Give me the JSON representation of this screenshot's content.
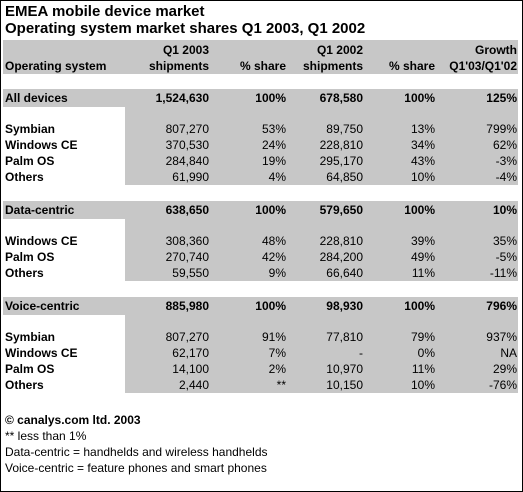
{
  "title_line1": "EMEA mobile device market",
  "title_line2": "Operating system market shares Q1 2003, Q1 2002",
  "header": {
    "col1_line1": "",
    "col1_line2": "Operating system",
    "q1_2003_line1": "Q1 2003",
    "q1_2003_line2": "shipments",
    "share_2003_line2": "% share",
    "q1_2002_line1": "Q1 2002",
    "q1_2002_line2": "shipments",
    "share_2002_line2": "% share",
    "growth_line1": "Growth",
    "growth_line2": "Q1'03/Q1'02"
  },
  "sections": [
    {
      "total": {
        "label": "All devices",
        "v1": "1,524,630",
        "p1": "100%",
        "v2": "678,580",
        "p2": "100%",
        "g": "125%"
      },
      "rows": [
        {
          "label": "Symbian",
          "v1": "807,270",
          "p1": "53%",
          "v2": "89,750",
          "p2": "13%",
          "g": "799%"
        },
        {
          "label": "Windows CE",
          "v1": "370,530",
          "p1": "24%",
          "v2": "228,810",
          "p2": "34%",
          "g": "62%"
        },
        {
          "label": "Palm OS",
          "v1": "284,840",
          "p1": "19%",
          "v2": "295,170",
          "p2": "43%",
          "g": "-3%"
        },
        {
          "label": "Others",
          "v1": "61,990",
          "p1": "4%",
          "v2": "64,850",
          "p2": "10%",
          "g": "-4%"
        }
      ]
    },
    {
      "total": {
        "label": "Data-centric",
        "v1": "638,650",
        "p1": "100%",
        "v2": "579,650",
        "p2": "100%",
        "g": "10%"
      },
      "rows": [
        {
          "label": "Windows CE",
          "v1": "308,360",
          "p1": "48%",
          "v2": "228,810",
          "p2": "39%",
          "g": "35%"
        },
        {
          "label": "Palm OS",
          "v1": "270,740",
          "p1": "42%",
          "v2": "284,200",
          "p2": "49%",
          "g": "-5%"
        },
        {
          "label": "Others",
          "v1": "59,550",
          "p1": "9%",
          "v2": "66,640",
          "p2": "11%",
          "g": "-11%"
        }
      ]
    },
    {
      "total": {
        "label": "Voice-centric",
        "v1": "885,980",
        "p1": "100%",
        "v2": "98,930",
        "p2": "100%",
        "g": "796%"
      },
      "rows": [
        {
          "label": "Symbian",
          "v1": "807,270",
          "p1": "91%",
          "v2": "77,810",
          "p2": "79%",
          "g": "937%"
        },
        {
          "label": "Windows CE",
          "v1": "62,170",
          "p1": "7%",
          "v2": "-",
          "p2": "0%",
          "g": "NA"
        },
        {
          "label": "Palm OS",
          "v1": "14,100",
          "p1": "2%",
          "v2": "10,970",
          "p2": "11%",
          "g": "29%"
        },
        {
          "label": "Others",
          "v1": "2,440",
          "p1": "**",
          "v2": "10,150",
          "p2": "10%",
          "g": "-76%"
        }
      ]
    }
  ],
  "footnotes": [
    "© canalys.com ltd. 2003",
    "** less than 1%",
    "Data-centric = handhelds and wireless handhelds",
    "Voice-centric = feature phones and smart phones"
  ]
}
